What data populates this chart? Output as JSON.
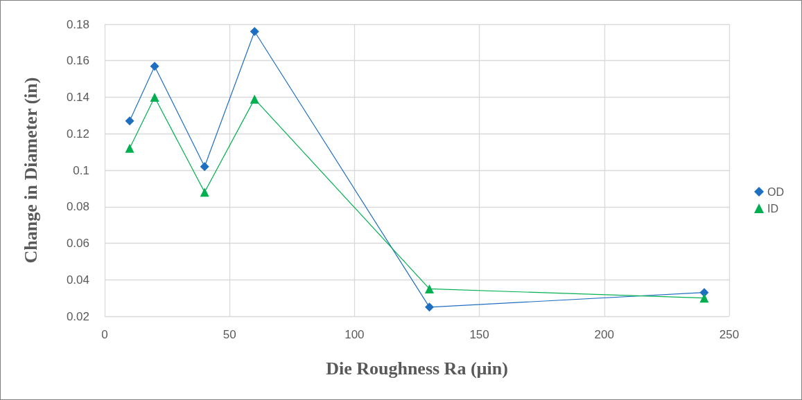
{
  "chart_data": {
    "type": "line",
    "xlabel": "Die Roughness Ra (µin)",
    "ylabel": "Change in Diameter (in)",
    "x": [
      10,
      20,
      40,
      60,
      130,
      240
    ],
    "series": [
      {
        "name": "OD",
        "color": "#1f6fc1",
        "values": [
          0.127,
          0.157,
          0.102,
          0.176,
          0.025,
          0.033
        ],
        "marker": "diamond"
      },
      {
        "name": "ID",
        "color": "#00b050",
        "values": [
          0.112,
          0.14,
          0.088,
          0.139,
          0.035,
          0.03
        ],
        "marker": "triangle"
      }
    ],
    "xlim": [
      0,
      250
    ],
    "xticks": [
      0,
      50,
      100,
      150,
      200,
      250
    ],
    "ylim": [
      0.02,
      0.18
    ],
    "yticks": [
      0.02,
      0.04,
      0.06,
      0.08,
      0.1,
      0.12,
      0.14,
      0.16,
      0.18
    ],
    "grid": true,
    "legend": "right",
    "line_style": "solid"
  }
}
